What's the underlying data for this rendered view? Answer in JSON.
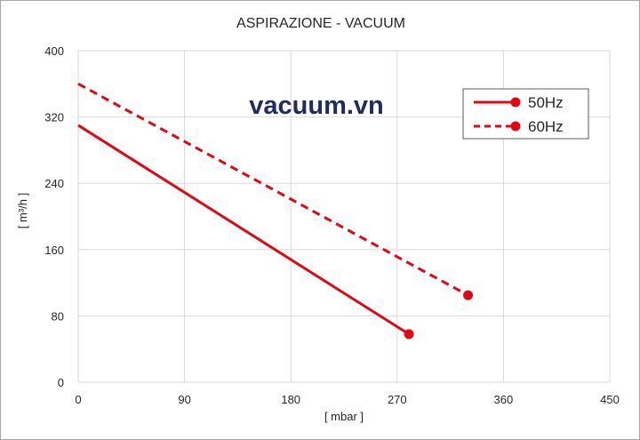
{
  "chart_data": {
    "type": "line",
    "title": "ASPIRAZIONE - VACUUM",
    "xlabel": "[ mbar ]",
    "ylabel": "[ m³/h ]",
    "xlim": [
      0,
      450
    ],
    "ylim": [
      0,
      400
    ],
    "xticks": [
      "0",
      "90",
      "180",
      "270",
      "360",
      "450"
    ],
    "yticks": [
      "0",
      "80",
      "160",
      "240",
      "320",
      "400"
    ],
    "grid": true,
    "legend_position": "top-right",
    "watermark": "vacuum.vn",
    "series": [
      {
        "name": "50Hz",
        "style": "solid",
        "color": "#e30613",
        "x": [
          0,
          280
        ],
        "y": [
          310,
          58
        ]
      },
      {
        "name": "60Hz",
        "style": "dashed",
        "color": "#e30613",
        "x": [
          0,
          330
        ],
        "y": [
          360,
          105
        ]
      }
    ]
  }
}
